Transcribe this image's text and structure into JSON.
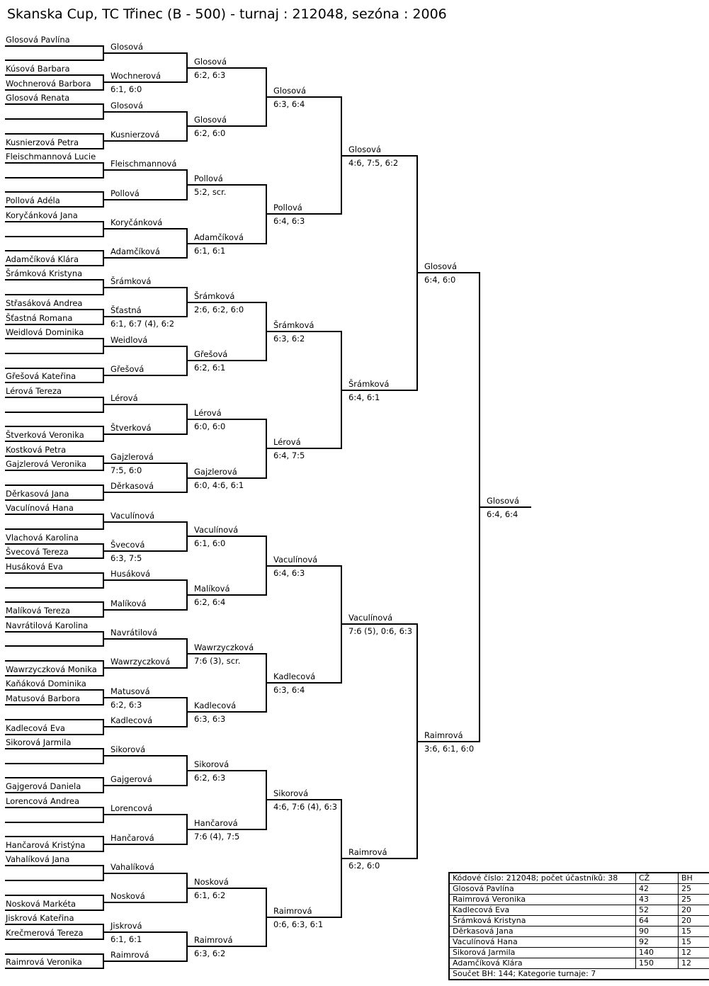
{
  "page_title": "Skanska Cup, TC Třinec (B - 500) - turnaj : 212048, sezóna : 2006",
  "colors": {
    "background": "#ffffff",
    "lines": "#000000",
    "text": "#000000"
  },
  "bracket": {
    "first_round_slots": [
      {
        "top": "Glosová Pavlína",
        "bottom": ""
      },
      {
        "top": "Kúsová Barbara",
        "bottom": "Wochnerová Barbora"
      },
      {
        "top": "Glosová Renata",
        "bottom": ""
      },
      {
        "top": "",
        "bottom": "Kusnierzová Petra"
      },
      {
        "top": "Fleischmannová Lucie",
        "bottom": ""
      },
      {
        "top": "",
        "bottom": "Pollová Adéla"
      },
      {
        "top": "Koryčánková Jana",
        "bottom": ""
      },
      {
        "top": "",
        "bottom": "Adamčíková Klára"
      },
      {
        "top": "Šrámková Kristyna",
        "bottom": ""
      },
      {
        "top": "Střasáková Andrea",
        "bottom": "Šťastná Romana"
      },
      {
        "top": "Weidlová Dominika",
        "bottom": ""
      },
      {
        "top": "",
        "bottom": "Gřešová Kateřina"
      },
      {
        "top": "Lérová Tereza",
        "bottom": ""
      },
      {
        "top": "",
        "bottom": "Štverková Veronika"
      },
      {
        "top": "Kostková Petra",
        "bottom": "Gajzlerová Veronika"
      },
      {
        "top": "",
        "bottom": "Děrkasová Jana"
      },
      {
        "top": "Vaculínová Hana",
        "bottom": ""
      },
      {
        "top": "Vlachová Karolina",
        "bottom": "Švecová Tereza"
      },
      {
        "top": "Husáková Eva",
        "bottom": ""
      },
      {
        "top": "",
        "bottom": "Malíková Tereza"
      },
      {
        "top": "Navrátilová Karolina",
        "bottom": ""
      },
      {
        "top": "",
        "bottom": "Wawrzyczková Monika"
      },
      {
        "top": "Kaňáková Dominika",
        "bottom": "Matusová Barbora"
      },
      {
        "top": "",
        "bottom": "Kadlecová Eva"
      },
      {
        "top": "Sikorová Jarmila",
        "bottom": ""
      },
      {
        "top": "",
        "bottom": "Gajgerová Daniela"
      },
      {
        "top": "Lorencová Andrea",
        "bottom": ""
      },
      {
        "top": "",
        "bottom": "Hančarová Kristýna"
      },
      {
        "top": "Vahalíková Jana",
        "bottom": ""
      },
      {
        "top": "",
        "bottom": "Nosková Markéta"
      },
      {
        "top": "Jiskrová Kateřina",
        "bottom": "Krečmerová Tereza"
      },
      {
        "top": "",
        "bottom": "Raimrová Veronika"
      }
    ],
    "rounds": [
      {
        "entries": [
          {
            "name": "Glosová",
            "score": ""
          },
          {
            "name": "Wochnerová",
            "score": "6:1, 6:0"
          },
          {
            "name": "Glosová",
            "score": ""
          },
          {
            "name": "Kusnierzová",
            "score": ""
          },
          {
            "name": "Fleischmannová",
            "score": ""
          },
          {
            "name": "Pollová",
            "score": ""
          },
          {
            "name": "Koryčánková",
            "score": ""
          },
          {
            "name": "Adamčíková",
            "score": ""
          },
          {
            "name": "Šrámková",
            "score": ""
          },
          {
            "name": "Šťastná",
            "score": "6:1, 6:7 (4), 6:2"
          },
          {
            "name": "Weidlová",
            "score": ""
          },
          {
            "name": "Gřešová",
            "score": ""
          },
          {
            "name": "Lérová",
            "score": ""
          },
          {
            "name": "Štverková",
            "score": ""
          },
          {
            "name": "Gajzlerová",
            "score": "7:5, 6:0"
          },
          {
            "name": "Děrkasová",
            "score": ""
          },
          {
            "name": "Vaculínová",
            "score": ""
          },
          {
            "name": "Švecová",
            "score": "6:3, 7:5"
          },
          {
            "name": "Husáková",
            "score": ""
          },
          {
            "name": "Malíková",
            "score": ""
          },
          {
            "name": "Navrátilová",
            "score": ""
          },
          {
            "name": "Wawrzyczková",
            "score": ""
          },
          {
            "name": "Matusová",
            "score": "6:2, 6:3"
          },
          {
            "name": "Kadlecová",
            "score": ""
          },
          {
            "name": "Sikorová",
            "score": ""
          },
          {
            "name": "Gajgerová",
            "score": ""
          },
          {
            "name": "Lorencová",
            "score": ""
          },
          {
            "name": "Hančarová",
            "score": ""
          },
          {
            "name": "Vahalíková",
            "score": ""
          },
          {
            "name": "Nosková",
            "score": ""
          },
          {
            "name": "Jiskrová",
            "score": "6:1, 6:1"
          },
          {
            "name": "Raimrová",
            "score": ""
          }
        ]
      },
      {
        "entries": [
          {
            "name": "Glosová",
            "score": "6:2, 6:3"
          },
          {
            "name": "Glosová",
            "score": "6:2, 6:0"
          },
          {
            "name": "Pollová",
            "score": "5:2, scr."
          },
          {
            "name": "Adamčíková",
            "score": "6:1, 6:1"
          },
          {
            "name": "Šrámková",
            "score": "2:6, 6:2, 6:0"
          },
          {
            "name": "Gřešová",
            "score": "6:2, 6:1"
          },
          {
            "name": "Lérová",
            "score": "6:0, 6:0"
          },
          {
            "name": "Gajzlerová",
            "score": "6:0, 4:6, 6:1"
          },
          {
            "name": "Vaculínová",
            "score": "6:1, 6:0"
          },
          {
            "name": "Malíková",
            "score": "6:2, 6:4"
          },
          {
            "name": "Wawrzyczková",
            "score": "7:6 (3), scr."
          },
          {
            "name": "Kadlecová",
            "score": "6:3, 6:3"
          },
          {
            "name": "Sikorová",
            "score": "6:2, 6:3"
          },
          {
            "name": "Hančarová",
            "score": "7:6 (4), 7:5"
          },
          {
            "name": "Nosková",
            "score": "6:1, 6:2"
          },
          {
            "name": "Raimrová",
            "score": "6:3, 6:2"
          }
        ]
      },
      {
        "entries": [
          {
            "name": "Glosová",
            "score": "6:3, 6:4"
          },
          {
            "name": "Pollová",
            "score": "6:4, 6:3"
          },
          {
            "name": "Šrámková",
            "score": "6:3, 6:2"
          },
          {
            "name": "Lérová",
            "score": "6:4, 7:5"
          },
          {
            "name": "Vaculínová",
            "score": "6:4, 6:3"
          },
          {
            "name": "Kadlecová",
            "score": "6:3, 6:4"
          },
          {
            "name": "Sikorová",
            "score": "4:6, 7:6 (4), 6:3"
          },
          {
            "name": "Raimrová",
            "score": "0:6, 6:3, 6:1"
          }
        ]
      },
      {
        "entries": [
          {
            "name": "Glosová",
            "score": "4:6, 7:5, 6:2"
          },
          {
            "name": "Šrámková",
            "score": "6:4, 6:1"
          },
          {
            "name": "Vaculínová",
            "score": "7:6 (5), 0:6, 6:3"
          },
          {
            "name": "Raimrová",
            "score": "6:2, 6:0"
          }
        ]
      },
      {
        "entries": [
          {
            "name": "Glosová",
            "score": "6:4, 6:0"
          },
          {
            "name": "Raimrová",
            "score": "3:6, 6:1, 6:0"
          }
        ]
      },
      {
        "entries": [
          {
            "name": "Glosová",
            "score": "6:4, 6:4"
          }
        ]
      }
    ]
  },
  "results_table": {
    "header": [
      "Kódové číslo: 212048; počet účastníků: 38",
      "CŽ",
      "BH"
    ],
    "rows": [
      [
        "Glosová Pavlína",
        "42",
        "25"
      ],
      [
        "Raimrová Veronika",
        "43",
        "25"
      ],
      [
        "Kadlecová Eva",
        "52",
        "20"
      ],
      [
        "Šrámková Kristyna",
        "64",
        "20"
      ],
      [
        "Děrkasová Jana",
        "90",
        "15"
      ],
      [
        "Vaculínová Hana",
        "92",
        "15"
      ],
      [
        "Sikorová Jarmila",
        "140",
        "12"
      ],
      [
        "Adamčíková Klára",
        "150",
        "12"
      ]
    ],
    "footer": "Součet BH: 144; Kategorie turnaje: 7"
  }
}
